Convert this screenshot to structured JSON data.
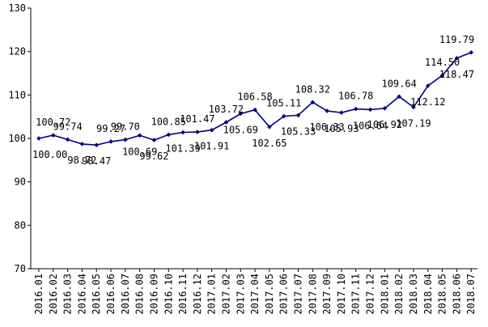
{
  "chart_data": {
    "type": "line",
    "ylim": [
      70,
      130
    ],
    "yticks": [
      70,
      80,
      90,
      100,
      110,
      120,
      130
    ],
    "grid": false,
    "legend": "none",
    "series_color": "#000080",
    "x": [
      "2016.01",
      "2016.02",
      "2016.03",
      "2016.04",
      "2016.05",
      "2016.06",
      "2016.07",
      "2016.08",
      "2016.09",
      "2016.10",
      "2016.11",
      "2016.12",
      "2017.01",
      "2017.02",
      "2017.03",
      "2017.04",
      "2017.05",
      "2017.06",
      "2017.07",
      "2017.08",
      "2017.09",
      "2017.10",
      "2017.11",
      "2017.12",
      "2018.01",
      "2018.02",
      "2018.03",
      "2018.04",
      "2018.05",
      "2018.06",
      "2018.07"
    ],
    "series": [
      {
        "values": [
          100.0,
          100.72,
          99.74,
          98.72,
          98.47,
          99.27,
          99.7,
          100.69,
          99.62,
          100.85,
          101.39,
          101.47,
          101.91,
          103.72,
          105.69,
          106.58,
          102.65,
          105.11,
          105.33,
          108.32,
          106.33,
          105.93,
          106.78,
          106.64,
          106.92,
          109.64,
          107.19,
          112.12,
          114.5,
          118.47,
          119.79
        ],
        "labels": [
          "100.00",
          "100.72",
          "99.74",
          "98.72",
          "98.47",
          "99.27",
          "99.70",
          "100.69",
          "99.62",
          "100.85",
          "101.39",
          "101.47",
          "101.91",
          "103.72",
          "105.69",
          "106.58",
          "102.65",
          "105.11",
          "105.33",
          "108.32",
          "106.33",
          "105.93",
          "106.78",
          "106.64",
          "106.92",
          "109.64",
          "107.19",
          "112.12",
          "114.50",
          "118.47",
          "119.79"
        ],
        "label_pos": [
          "below",
          "above",
          "above",
          "below",
          "below",
          "above",
          "above",
          "below",
          "below",
          "above",
          "below",
          "above",
          "below",
          "above",
          "below",
          "above",
          "below",
          "above",
          "below",
          "above",
          "below",
          "below",
          "above",
          "below",
          "below",
          "above",
          "below",
          "below",
          "above",
          "below",
          "above"
        ]
      }
    ]
  }
}
